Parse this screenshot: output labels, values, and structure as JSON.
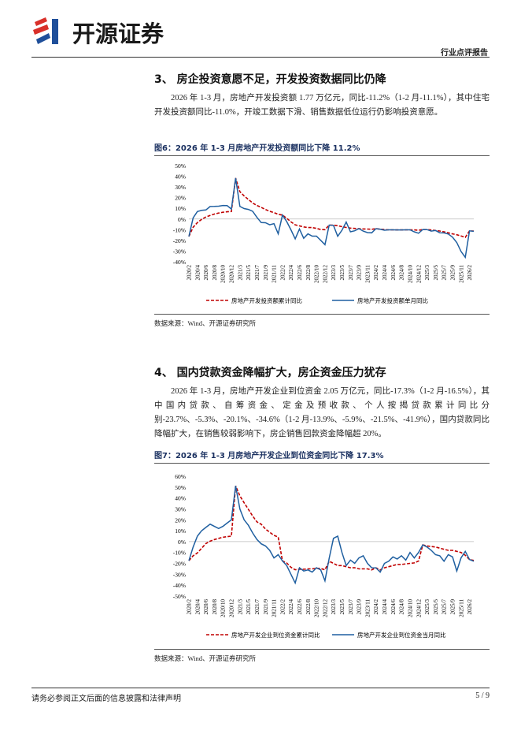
{
  "header": {
    "logo_text": "开源证券",
    "report_type": "行业点评报告"
  },
  "sections": [
    {
      "heading": "3、 房企投资意愿不足，开发投资数据同比仍降",
      "paragraph": "2026 年 1-3 月，房地产开发投资额 1.77 万亿元，同比-11.2%（1-2 月-11.1%），其中住宅开发投资额同比-11.0%，开竣工数据下滑、销售数据低位运行仍影响投资意愿。"
    },
    {
      "heading": "4、 国内贷款资金降幅扩大，房企资金压力犹存",
      "paragraph": "2026 年 1-3 月，房地产开发企业到位资金 2.05 万亿元，同比-17.3%（1-2 月-16.5%），其中国内贷款、自筹资金、定金及预收款、个人按揭贷款累计同比分别-23.7%、-5.3%、-20.1%、-34.6%（1-2 月-13.9%、-5.9%、-21.5%、-41.9%），国内贷款同比降幅扩大，在销售较弱影响下，房企销售回款资金降幅超 20%。"
    }
  ],
  "chart_data": [
    {
      "type": "line",
      "title": "图6：2026 年 1-3 月房地产开发投资额同比下降 11.2%",
      "source": "数据来源：Wind、开源证券研究所",
      "categories": [
        "2020/2",
        null,
        "2020/4",
        null,
        "2020/6",
        null,
        "2020/8",
        null,
        "2020/10",
        null,
        "2020/12",
        null,
        "2021/3",
        null,
        "2021/5",
        null,
        "2021/7",
        null,
        "2021/9",
        null,
        "2021/11",
        null,
        "2022/2",
        null,
        "2022/4",
        null,
        "2022/6",
        null,
        "2022/8",
        null,
        "2022/10",
        null,
        "2022/12",
        null,
        "2023/3",
        null,
        "2023/5",
        null,
        "2023/7",
        null,
        "2023/9",
        null,
        "2023/11",
        null,
        "2024/2",
        null,
        "2024/4",
        null,
        "2024/6",
        null,
        "2024/8",
        null,
        "2024/10",
        null,
        "2024/12",
        null,
        "2025/3",
        null,
        "2025/5",
        null,
        "2025/7",
        null,
        "2025/9",
        null,
        "2025/11",
        null,
        "2026/2",
        null
      ],
      "ylim": [
        -40,
        50
      ],
      "yticks": [
        {
          "value": -40,
          "label": "-40%"
        },
        {
          "value": -30,
          "label": "-30%"
        },
        {
          "value": -20,
          "label": "-20%"
        },
        {
          "value": -10,
          "label": "-10%"
        },
        {
          "value": 0,
          "label": "0%"
        },
        {
          "value": 10,
          "label": "10%"
        },
        {
          "value": 20,
          "label": "20%"
        },
        {
          "value": 30,
          "label": "30%"
        },
        {
          "value": 40,
          "label": "40%"
        },
        {
          "value": 50,
          "label": "50%"
        }
      ],
      "series": [
        {
          "name": "房地产开发投资额累计同比",
          "color": "#c00000",
          "line_style": "dashed",
          "values": [
            -16.3,
            -7.7,
            -3.3,
            -0.3,
            1.9,
            3.4,
            4.6,
            5.6,
            6.3,
            6.8,
            7.0,
            38.3,
            25.6,
            21.6,
            18.3,
            15.0,
            12.7,
            10.9,
            8.9,
            7.2,
            6.0,
            4.4,
            3.7,
            0.7,
            -2.7,
            -5.4,
            -6.4,
            -7.4,
            -8.0,
            -8.0,
            -8.8,
            -9.8,
            -10.0,
            -5.7,
            -5.8,
            -6.2,
            -7.2,
            -7.9,
            -8.5,
            -8.8,
            -9.1,
            -9.3,
            -9.4,
            -9.6,
            -9.0,
            -9.5,
            -9.8,
            -10.1,
            -10.1,
            -10.2,
            -10.2,
            -10.1,
            -10.1,
            -10.2,
            -10.6,
            -9.8,
            -9.9,
            -10.3,
            -10.7,
            -11.2,
            -12.0,
            -12.9,
            -13.9,
            -14.7,
            -15.9,
            -17.2,
            -11.1,
            -11.2
          ]
        },
        {
          "name": "房地产开发投资额单月同比",
          "color": "#1f5fa0",
          "line_style": "solid",
          "values": [
            -16.3,
            1.1,
            7.0,
            8.1,
            8.5,
            11.7,
            11.8,
            12.0,
            12.7,
            12.5,
            9.3,
            38.3,
            11.8,
            9.8,
            9.0,
            7.2,
            1.6,
            -3.3,
            -3.5,
            -5.4,
            -4.3,
            -13.9,
            3.7,
            -2.4,
            -10.1,
            -18.5,
            -9.4,
            -18.0,
            -13.9,
            -16.0,
            -16.0,
            -19.9,
            -24.0,
            -5.7,
            -5.9,
            -16.2,
            -10.5,
            -2.8,
            -12.0,
            -11.0,
            -9.0,
            -11.3,
            -12.7,
            -12.9,
            -9.0,
            -9.6,
            -10.5,
            -10.1,
            -10.1,
            -10.2,
            -10.2,
            -10.1,
            -10.1,
            -12.0,
            -13.3,
            -9.8,
            -9.9,
            -11.3,
            -10.7,
            -12.9,
            -13.0,
            -14.0,
            -17.0,
            -22.0,
            -30.3,
            -35.8,
            -11.1,
            -11.5
          ]
        }
      ]
    },
    {
      "type": "line",
      "title": "图7：2026 年 1-3 月房地产开发企业到位资金同比下降 17.3%",
      "source": "数据来源：Wind、开源证券研究所",
      "categories": [
        "2020/2",
        null,
        "2020/4",
        null,
        "2020/6",
        null,
        "2020/8",
        null,
        "2020/10",
        null,
        "2020/12",
        null,
        "2021/3",
        null,
        "2021/5",
        null,
        "2021/7",
        null,
        "2021/9",
        null,
        "2021/11",
        null,
        "2022/2",
        null,
        "2022/4",
        null,
        "2022/6",
        null,
        "2022/8",
        null,
        "2022/10",
        null,
        "2022/12",
        null,
        "2023/3",
        null,
        "2023/5",
        null,
        "2023/7",
        null,
        "2023/9",
        null,
        "2023/11",
        null,
        "2024/2",
        null,
        "2024/4",
        null,
        "2024/6",
        null,
        "2024/8",
        null,
        "2024/10",
        null,
        "2024/12",
        null,
        "2025/3",
        null,
        "2025/5",
        null,
        "2025/7",
        null,
        "2025/9",
        null,
        "2025/11",
        null,
        "2026/2",
        null
      ],
      "ylim": [
        -50,
        60
      ],
      "yticks": [
        {
          "value": -50,
          "label": "-50%"
        },
        {
          "value": -40,
          "label": "-40%"
        },
        {
          "value": -30,
          "label": "-30%"
        },
        {
          "value": -20,
          "label": "-20%"
        },
        {
          "value": -10,
          "label": "-10%"
        },
        {
          "value": 0,
          "label": "0%"
        },
        {
          "value": 10,
          "label": "10%"
        },
        {
          "value": 20,
          "label": "20%"
        },
        {
          "value": 30,
          "label": "30%"
        },
        {
          "value": 40,
          "label": "40%"
        },
        {
          "value": 50,
          "label": "50%"
        },
        {
          "value": 60,
          "label": "60%"
        }
      ],
      "series": [
        {
          "name": "房地产开发企业到位资金累计同比",
          "color": "#c00000",
          "line_style": "dashed",
          "values": [
            -17.5,
            -13.0,
            -10.4,
            -6.1,
            -1.8,
            0.4,
            1.9,
            3.0,
            4.0,
            4.6,
            5.0,
            51.2,
            42.0,
            35.6,
            29.6,
            23.5,
            18.2,
            15.9,
            11.5,
            8.6,
            5.7,
            4.2,
            -17.7,
            -19.6,
            -23.6,
            -25.8,
            -25.3,
            -25.4,
            -25.0,
            -25.0,
            -24.5,
            -24.7,
            -25.9,
            -18.0,
            -20.0,
            -22.0,
            -22.0,
            -23.0,
            -24.0,
            -24.0,
            -25.0,
            -25.0,
            -25.0,
            -26.0,
            -24.1,
            -26.0,
            -24.0,
            -23.0,
            -22.0,
            -21.0,
            -21.0,
            -20.5,
            -20.0,
            -19.5,
            -17.9,
            -3.0,
            -4.0,
            -4.5,
            -5.0,
            -6.0,
            -7.0,
            -8.0,
            -8.0,
            -9.0,
            -10.0,
            -12.5,
            -16.5,
            -17.3
          ]
        },
        {
          "name": "房地产开发企业到位资金当月同比",
          "color": "#1f5fa0",
          "line_style": "solid",
          "values": [
            -17.5,
            -5.0,
            5.0,
            10.0,
            13.0,
            16.0,
            14.0,
            12.0,
            14.0,
            17.0,
            20.0,
            51.2,
            30.0,
            20.0,
            15.0,
            8.0,
            2.0,
            -2.0,
            -4.0,
            -8.0,
            -15.0,
            -12.0,
            -17.7,
            -22.0,
            -30.0,
            -38.0,
            -24.0,
            -27.0,
            -26.0,
            -28.0,
            -24.0,
            -26.0,
            -36.0,
            -15.2,
            3.0,
            5.0,
            -10.0,
            -22.0,
            -17.0,
            -20.0,
            -15.0,
            -13.0,
            -20.0,
            -24.0,
            -24.1,
            -28.0,
            -20.0,
            -18.0,
            -14.0,
            -16.0,
            -13.0,
            -17.0,
            -10.0,
            -15.0,
            -10.0,
            -3.0,
            -5.0,
            -8.0,
            -12.0,
            -13.0,
            -18.0,
            -12.0,
            -14.0,
            -27.0,
            -15.0,
            -9.0,
            -16.5,
            -18.0
          ]
        }
      ]
    }
  ],
  "footer": {
    "disclaimer": "请务必参阅正文后面的信息披露和法律声明",
    "page": "5 / 9"
  }
}
